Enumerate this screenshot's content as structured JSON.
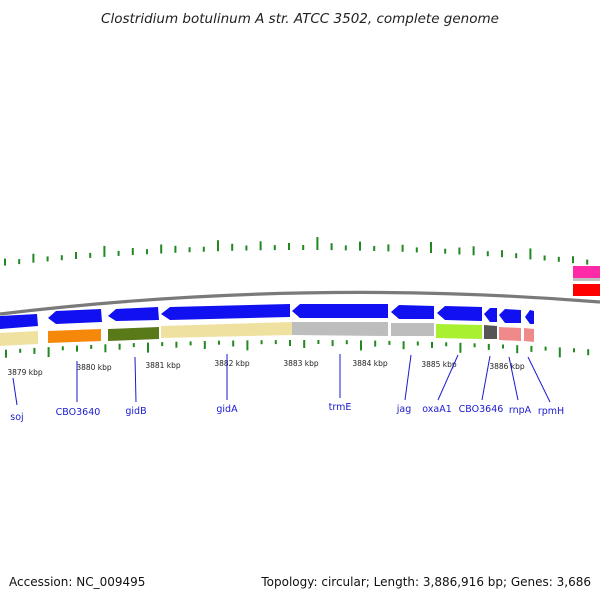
{
  "title": "Clostridium botulinum A str. ATCC 3502, complete genome",
  "accession_text": "Accession: NC_009495",
  "summary_text": "Topology: circular; Length: 3,886,916 bp; Genes: 3,686",
  "kbp_ticks": [
    {
      "label": "3879 kbp"
    },
    {
      "label": "3880 kbp"
    },
    {
      "label": "3881 kbp"
    },
    {
      "label": "3882 kbp"
    },
    {
      "label": "3883 kbp"
    },
    {
      "label": "3884 kbp"
    },
    {
      "label": "3885 kbp"
    },
    {
      "label": "3886 kbp"
    }
  ],
  "gene_labels": [
    {
      "name": "soj"
    },
    {
      "name": "CBO3640"
    },
    {
      "name": "gidB"
    },
    {
      "name": "gidA"
    },
    {
      "name": "trmE"
    },
    {
      "name": "jag"
    },
    {
      "name": "oxaA1"
    },
    {
      "name": "CBO3646"
    },
    {
      "name": "rnpA"
    },
    {
      "name": "rpmH"
    }
  ],
  "colors": {
    "gene_arrow": "#1010f0",
    "backbone": "#777777",
    "gc_skew_ticks": "#228822",
    "label_text": "#1a1ad0",
    "pink_feature": "#ff2aa8",
    "red_feature": "#ff0000"
  }
}
